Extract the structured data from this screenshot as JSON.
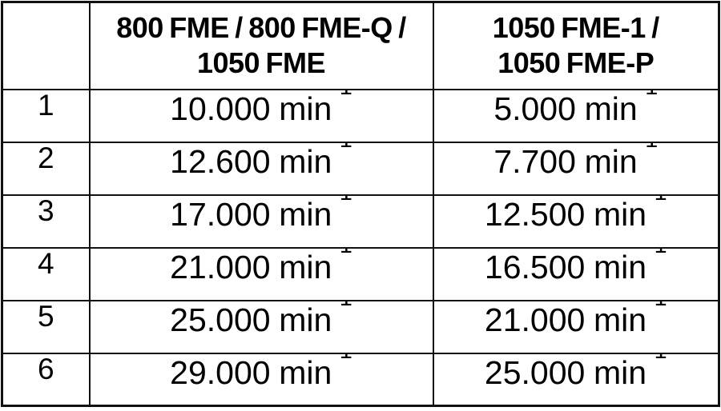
{
  "colors": {
    "background": "#ffffff",
    "border": "#111111",
    "text": "#000000"
  },
  "table": {
    "header": {
      "index_label": "",
      "col_a_label": "800 FME / 800 FME-Q /\n1050 FME",
      "col_b_label": "1050 FME-1 /\n1050 FME-P"
    },
    "unit": "min",
    "unit_exponent": "-1",
    "rows": [
      {
        "index": "1",
        "col_a": "10.000",
        "col_b": "5.000"
      },
      {
        "index": "2",
        "col_a": "12.600",
        "col_b": "7.700"
      },
      {
        "index": "3",
        "col_a": "17.000",
        "col_b": "12.500"
      },
      {
        "index": "4",
        "col_a": "21.000",
        "col_b": "16.500"
      },
      {
        "index": "5",
        "col_a": "25.000",
        "col_b": "21.000"
      },
      {
        "index": "6",
        "col_a": "29.000",
        "col_b": "25.000"
      }
    ]
  }
}
